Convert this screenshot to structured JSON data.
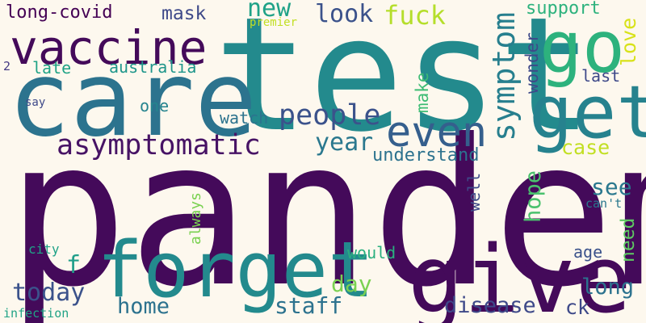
{
  "words": [
    {
      "text": "pandemic",
      "color": "#440a5a"
    },
    {
      "text": "test",
      "color": "#238a8d"
    },
    {
      "text": "care",
      "color": "#2c738e"
    },
    {
      "text": "give",
      "color": "#440a5a"
    },
    {
      "text": "forget",
      "color": "#238a8d"
    },
    {
      "text": "vaccine",
      "color": "#440a5a"
    },
    {
      "text": "go",
      "color": "#2db27d"
    },
    {
      "text": "get",
      "color": "#26828e"
    },
    {
      "text": "even",
      "color": "#355f8d"
    },
    {
      "text": "asymptomatic",
      "color": "#471365"
    },
    {
      "text": "symptom",
      "color": "#277f8e"
    },
    {
      "text": "people",
      "color": "#3b528b"
    },
    {
      "text": "long-covid",
      "color": "#440154"
    },
    {
      "text": "mask",
      "color": "#3e4989"
    },
    {
      "text": "new",
      "color": "#1fa287"
    },
    {
      "text": "look",
      "color": "#3b528b"
    },
    {
      "text": "fuck",
      "color": "#b5de2b"
    },
    {
      "text": "support",
      "color": "#2db27d"
    },
    {
      "text": "love",
      "color": "#d8e219"
    },
    {
      "text": "premier",
      "color": "#c2df23"
    },
    {
      "text": "late",
      "color": "#20a386"
    },
    {
      "text": "australia",
      "color": "#1f968b"
    },
    {
      "text": "wonder",
      "color": "#3e4989"
    },
    {
      "text": "last",
      "color": "#3e4989"
    },
    {
      "text": "2",
      "color": "#443983"
    },
    {
      "text": "say",
      "color": "#3e4989"
    },
    {
      "text": "one",
      "color": "#25848e"
    },
    {
      "text": "make",
      "color": "#3dbc74"
    },
    {
      "text": "watch",
      "color": "#2c738e"
    },
    {
      "text": "year",
      "color": "#2a788e"
    },
    {
      "text": "understand",
      "color": "#2c728e"
    },
    {
      "text": "case",
      "color": "#c2df23"
    },
    {
      "text": "hope",
      "color": "#4ac16d"
    },
    {
      "text": "well",
      "color": "#3e4989"
    },
    {
      "text": "see",
      "color": "#2a788e"
    },
    {
      "text": "can't",
      "color": "#2a788e"
    },
    {
      "text": "need",
      "color": "#5ec962"
    },
    {
      "text": "always",
      "color": "#7ad151"
    },
    {
      "text": "city",
      "color": "#1fa287"
    },
    {
      "text": "f",
      "color": "#1f9e89"
    },
    {
      "text": "would",
      "color": "#2ab07f"
    },
    {
      "text": "age",
      "color": "#3b528b"
    },
    {
      "text": "day",
      "color": "#7ad151"
    },
    {
      "text": "long",
      "color": "#2c728e"
    },
    {
      "text": "today",
      "color": "#3b528b"
    },
    {
      "text": "home",
      "color": "#2c728e"
    },
    {
      "text": "staff",
      "color": "#2c728e"
    },
    {
      "text": "disease",
      "color": "#3e4989"
    },
    {
      "text": "ck",
      "color": "#3e4989"
    },
    {
      "text": "infection",
      "color": "#20a386"
    }
  ]
}
